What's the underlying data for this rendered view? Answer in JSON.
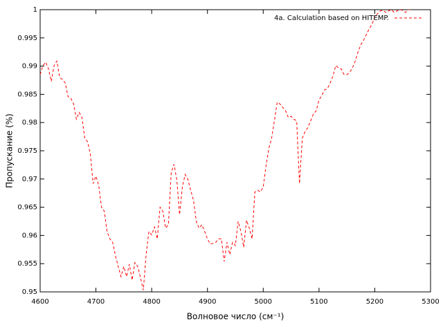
{
  "chart_data": {
    "type": "line",
    "xlabel": "Волновое число (см⁻¹)",
    "ylabel": "Пропускание (%)",
    "xlim": [
      4600,
      5300
    ],
    "ylim": [
      0.95,
      1
    ],
    "xticks": [
      4600,
      4700,
      4800,
      4900,
      5000,
      5100,
      5200,
      5300
    ],
    "yticks": [
      0.95,
      0.955,
      0.96,
      0.965,
      0.97,
      0.975,
      0.98,
      0.985,
      0.99,
      0.995,
      1
    ],
    "legend": "top-right",
    "dashed": true,
    "x": [
      4600,
      4605,
      4610,
      4615,
      4620,
      4625,
      4630,
      4635,
      4640,
      4645,
      4650,
      4655,
      4660,
      4665,
      4670,
      4675,
      4680,
      4685,
      4690,
      4695,
      4700,
      4705,
      4710,
      4715,
      4720,
      4725,
      4730,
      4735,
      4740,
      4745,
      4750,
      4755,
      4760,
      4765,
      4770,
      4775,
      4780,
      4785,
      4790,
      4795,
      4800,
      4805,
      4810,
      4815,
      4820,
      4825,
      4830,
      4835,
      4840,
      4845,
      4850,
      4855,
      4860,
      4865,
      4870,
      4875,
      4880,
      4885,
      4890,
      4895,
      4900,
      4905,
      4910,
      4915,
      4920,
      4925,
      4930,
      4935,
      4940,
      4945,
      4950,
      4955,
      4960,
      4965,
      4970,
      4975,
      4980,
      4985,
      4990,
      4995,
      5000,
      5005,
      5010,
      5015,
      5020,
      5025,
      5030,
      5035,
      5040,
      5045,
      5050,
      5055,
      5060,
      5065,
      5070,
      5075,
      5080,
      5085,
      5090,
      5095,
      5100,
      5105,
      5110,
      5115,
      5120,
      5125,
      5130,
      5135,
      5140,
      5145,
      5150,
      5155,
      5160,
      5165,
      5170,
      5175,
      5180,
      5185,
      5190,
      5195,
      5200,
      5205,
      5210,
      5215,
      5220,
      5225,
      5230,
      5235,
      5240,
      5245,
      5250,
      5255,
      5260,
      5265
    ],
    "series": [
      {
        "name": "4a. Calculation based on HITEMP.",
        "color": "#ff0000",
        "values": [
          0.9885,
          0.9901,
          0.9907,
          0.9895,
          0.9873,
          0.9901,
          0.9909,
          0.988,
          0.9876,
          0.987,
          0.9846,
          0.9843,
          0.9833,
          0.9806,
          0.9818,
          0.9809,
          0.9772,
          0.9766,
          0.9745,
          0.9692,
          0.9705,
          0.9689,
          0.965,
          0.9643,
          0.9607,
          0.9594,
          0.9588,
          0.9564,
          0.9545,
          0.9527,
          0.9545,
          0.9527,
          0.9549,
          0.9521,
          0.9552,
          0.9545,
          0.9525,
          0.9503,
          0.9566,
          0.9607,
          0.9601,
          0.9615,
          0.9594,
          0.965,
          0.9643,
          0.9613,
          0.9619,
          0.9711,
          0.9726,
          0.9699,
          0.9637,
          0.9686,
          0.9708,
          0.9699,
          0.968,
          0.9662,
          0.9625,
          0.9613,
          0.9619,
          0.9607,
          0.9594,
          0.9585,
          0.9586,
          0.9588,
          0.9594,
          0.9594,
          0.9554,
          0.9588,
          0.9566,
          0.9588,
          0.9582,
          0.9625,
          0.9607,
          0.9579,
          0.9627,
          0.9613,
          0.9594,
          0.9677,
          0.968,
          0.9677,
          0.9686,
          0.9723,
          0.9754,
          0.9772,
          0.9803,
          0.9836,
          0.9833,
          0.9827,
          0.9821,
          0.9809,
          0.9811,
          0.9806,
          0.9803,
          0.9692,
          0.9772,
          0.9784,
          0.9791,
          0.9803,
          0.9815,
          0.9821,
          0.984,
          0.9848,
          0.9858,
          0.986,
          0.987,
          0.9882,
          0.9901,
          0.9897,
          0.9895,
          0.9885,
          0.9885,
          0.9889,
          0.9897,
          0.9909,
          0.9925,
          0.9938,
          0.9946,
          0.9956,
          0.9966,
          0.9974,
          0.9987,
          0.9993,
          0.9998,
          0.9999,
          0.9995,
          0.9998,
          1,
          0.9995,
          0.9998,
          1,
          0.9999,
          0.9995,
          1,
          1
        ]
      }
    ]
  }
}
